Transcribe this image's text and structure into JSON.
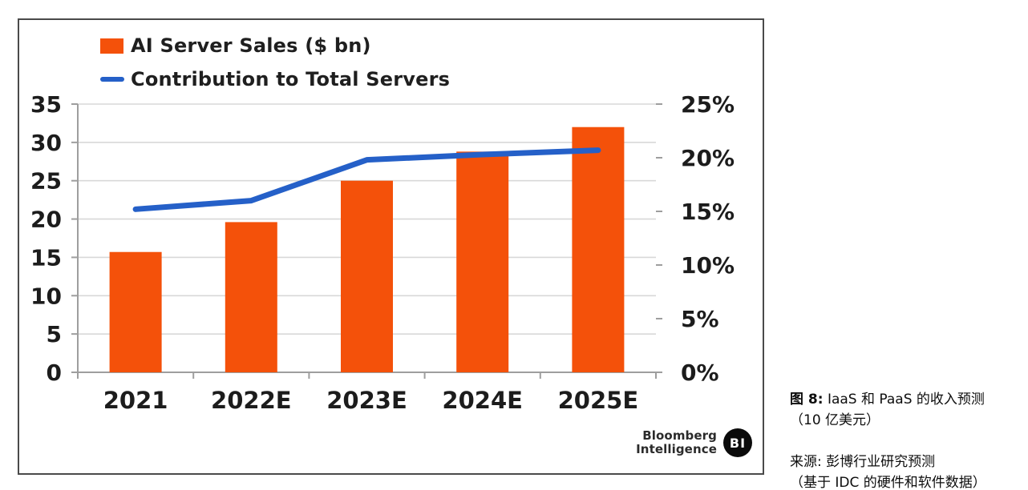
{
  "legend": {
    "items": [
      {
        "label": "AI Server Sales ($ bn)",
        "color": "#F4510A",
        "type": "bar"
      },
      {
        "label": "Contribution to Total Servers",
        "color": "#2560C8",
        "type": "line"
      }
    ]
  },
  "chart_data": {
    "type": "bar",
    "categories": [
      "2021",
      "2022E",
      "2023E",
      "2024E",
      "2025E"
    ],
    "series": [
      {
        "name": "AI Server Sales ($ bn)",
        "type": "bar",
        "axis": "left",
        "color": "#F4510A",
        "values": [
          15.7,
          19.6,
          25,
          28.8,
          32
        ]
      },
      {
        "name": "Contribution to Total Servers",
        "type": "line",
        "axis": "right",
        "color": "#2560C8",
        "values": [
          15.2,
          16.0,
          19.8,
          20.3,
          20.7
        ]
      }
    ],
    "left_axis": {
      "ticks": [
        0,
        5,
        10,
        15,
        20,
        25,
        30,
        35
      ],
      "range": [
        0,
        35
      ]
    },
    "right_axis": {
      "tick_labels": [
        "0%",
        "5%",
        "10%",
        "15%",
        "20%",
        "25%"
      ],
      "ticks": [
        0,
        5,
        10,
        15,
        20,
        25
      ],
      "range": [
        0,
        25
      ]
    },
    "grid": true,
    "legend_position": "top-left"
  },
  "branding": {
    "line1": "Bloomberg",
    "line2": "Intelligence",
    "badge": "BI"
  },
  "caption": {
    "figure_label": "图 8:",
    "figure_title": " IaaS 和 PaaS 的收入预测",
    "figure_subtitle": "（10 亿美元）",
    "source_line1": "来源: 彭博行业研究预测",
    "source_line2": "（基于 IDC 的硬件和软件数据）"
  },
  "colors": {
    "bar": "#F4510A",
    "line": "#2560C8",
    "grid": "#d8d8d8",
    "axis": "#9e9e9e",
    "text": "#1c1c1c",
    "box_border": "#4a4a4a",
    "badge_bg": "#0b0b0b"
  }
}
